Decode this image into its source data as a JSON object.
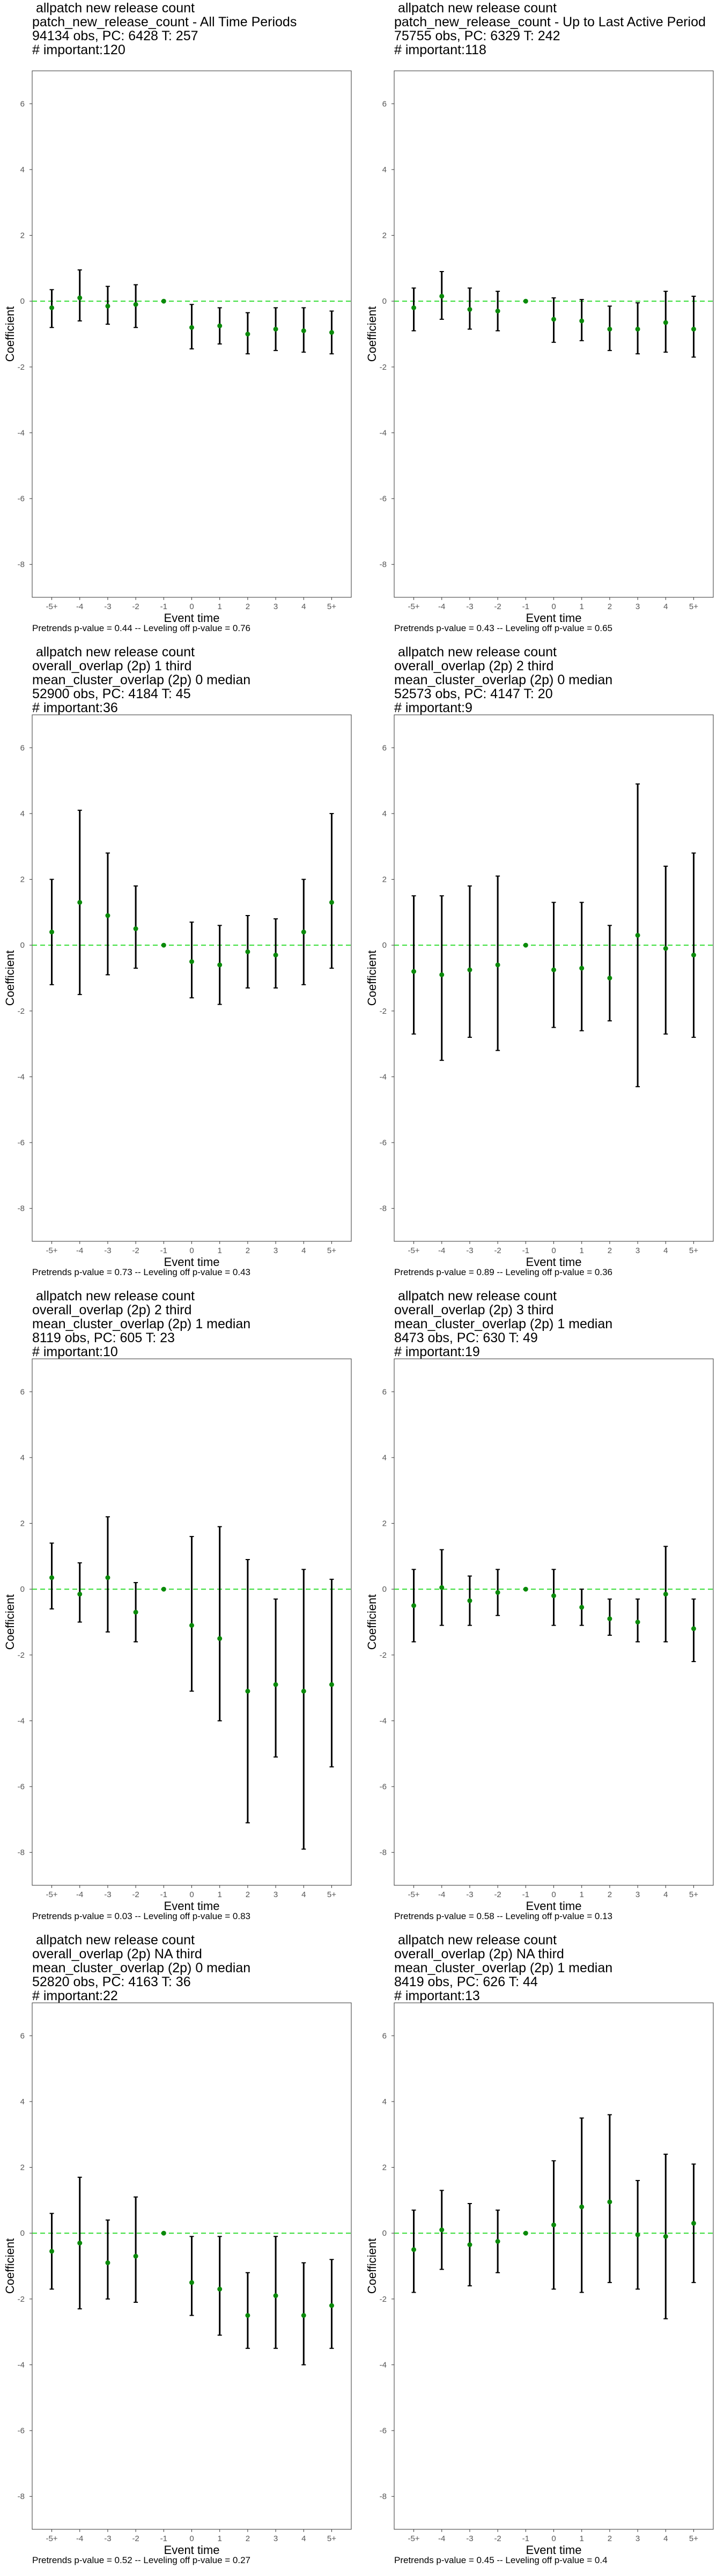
{
  "colors": {
    "point": "#0a8a0a",
    "zero_line": "#33dd33",
    "errorbar": "#000000",
    "frame": "#333333",
    "tick_text": "#555555"
  },
  "chart_data": [
    {
      "type": "scatter",
      "title_lines": [
        " allpatch new release count",
        "patch_new_release_count - All Time Periods",
        "94134 obs, PC: 6428 T: 257",
        "# important:120"
      ],
      "footnote": "Pretrends p-value = 0.44 -- Leveling off p-value = 0.76",
      "xlabel": "Event time",
      "ylabel": "Coefficient",
      "categories": [
        "-5+",
        "-4",
        "-3",
        "-2",
        "-1",
        "0",
        "1",
        "2",
        "3",
        "4",
        "5+"
      ],
      "estimates": [
        -0.2,
        0.1,
        -0.15,
        -0.1,
        0,
        -0.8,
        -0.75,
        -1.0,
        -0.85,
        -0.9,
        -0.95
      ],
      "ci_low": [
        -0.8,
        -0.6,
        -0.7,
        -0.8,
        0,
        -1.45,
        -1.3,
        -1.6,
        -1.5,
        -1.55,
        -1.6
      ],
      "ci_high": [
        0.35,
        0.95,
        0.45,
        0.5,
        0,
        -0.1,
        -0.2,
        -0.35,
        -0.2,
        -0.2,
        -0.3
      ],
      "ylim": [
        -9,
        7
      ],
      "yticks": [
        -8,
        -6,
        -4,
        -2,
        0,
        2,
        4,
        6
      ]
    },
    {
      "type": "scatter",
      "title_lines": [
        " allpatch new release count",
        "patch_new_release_count - Up to Last Active Period",
        "75755 obs, PC: 6329 T: 242",
        "# important:118"
      ],
      "footnote": "Pretrends p-value = 0.43 -- Leveling off p-value = 0.65",
      "xlabel": "Event time",
      "ylabel": "Coefficient",
      "categories": [
        "-5+",
        "-4",
        "-3",
        "-2",
        "-1",
        "0",
        "1",
        "2",
        "3",
        "4",
        "5+"
      ],
      "estimates": [
        -0.2,
        0.15,
        -0.25,
        -0.3,
        0,
        -0.55,
        -0.6,
        -0.85,
        -0.85,
        -0.65,
        -0.85
      ],
      "ci_low": [
        -0.9,
        -0.55,
        -0.85,
        -0.9,
        0,
        -1.25,
        -1.2,
        -1.5,
        -1.6,
        -1.55,
        -1.7
      ],
      "ci_high": [
        0.4,
        0.9,
        0.4,
        0.3,
        0,
        0.1,
        0.05,
        -0.15,
        -0.05,
        0.3,
        0.15
      ],
      "ylim": [
        -9,
        7
      ],
      "yticks": [
        -8,
        -6,
        -4,
        -2,
        0,
        2,
        4,
        6
      ]
    },
    {
      "type": "scatter",
      "title_lines": [
        " allpatch new release count",
        "overall_overlap (2p) 1 third",
        "mean_cluster_overlap (2p) 0 median",
        "52900 obs, PC: 4184 T: 45",
        "# important:36"
      ],
      "footnote": "Pretrends p-value = 0.73 -- Leveling off p-value = 0.43",
      "xlabel": "Event time",
      "ylabel": "Coefficient",
      "categories": [
        "-5+",
        "-4",
        "-3",
        "-2",
        "-1",
        "0",
        "1",
        "2",
        "3",
        "4",
        "5+"
      ],
      "estimates": [
        0.4,
        1.3,
        0.9,
        0.5,
        0,
        -0.5,
        -0.6,
        -0.2,
        -0.3,
        0.4,
        1.3
      ],
      "ci_low": [
        -1.2,
        -1.5,
        -0.9,
        -0.7,
        0,
        -1.6,
        -1.8,
        -1.3,
        -1.3,
        -1.2,
        -0.7
      ],
      "ci_high": [
        2.0,
        4.1,
        2.8,
        1.8,
        0,
        0.7,
        0.6,
        0.9,
        0.8,
        2.0,
        4.0
      ],
      "ylim": [
        -9,
        7
      ],
      "yticks": [
        -8,
        -6,
        -4,
        -2,
        0,
        2,
        4,
        6
      ]
    },
    {
      "type": "scatter",
      "title_lines": [
        " allpatch new release count",
        "overall_overlap (2p) 2 third",
        "mean_cluster_overlap (2p) 0 median",
        "52573 obs, PC: 4147 T: 20",
        "# important:9"
      ],
      "footnote": "Pretrends p-value = 0.89 -- Leveling off p-value = 0.36",
      "xlabel": "Event time",
      "ylabel": "Coefficient",
      "categories": [
        "-5+",
        "-4",
        "-3",
        "-2",
        "-1",
        "0",
        "1",
        "2",
        "3",
        "4",
        "5+"
      ],
      "estimates": [
        -0.8,
        -0.9,
        -0.75,
        -0.6,
        0,
        -0.75,
        -0.7,
        -1.0,
        0.3,
        -0.1,
        -0.3
      ],
      "ci_low": [
        -2.7,
        -3.5,
        -2.8,
        -3.2,
        0,
        -2.5,
        -2.6,
        -2.3,
        -4.3,
        -2.7,
        -2.8
      ],
      "ci_high": [
        1.5,
        1.5,
        1.8,
        2.1,
        0,
        1.3,
        1.3,
        0.6,
        4.9,
        2.4,
        2.8
      ],
      "ylim": [
        -9,
        7
      ],
      "yticks": [
        -8,
        -6,
        -4,
        -2,
        0,
        2,
        4,
        6
      ]
    },
    {
      "type": "scatter",
      "title_lines": [
        " allpatch new release count",
        "overall_overlap (2p) 2 third",
        "mean_cluster_overlap (2p) 1 median",
        "8119 obs, PC: 605 T: 23",
        "# important:10"
      ],
      "footnote": "Pretrends p-value = 0.03 -- Leveling off p-value = 0.83",
      "xlabel": "Event time",
      "ylabel": "Coefficient",
      "categories": [
        "-5+",
        "-4",
        "-3",
        "-2",
        "-1",
        "0",
        "1",
        "2",
        "3",
        "4",
        "5+"
      ],
      "estimates": [
        0.35,
        -0.15,
        0.35,
        -0.7,
        0,
        -1.1,
        -1.5,
        -3.1,
        -2.9,
        -3.1,
        -2.9
      ],
      "ci_low": [
        -0.6,
        -1.0,
        -1.3,
        -1.6,
        0,
        -3.1,
        -4.0,
        -7.1,
        -5.1,
        -7.9,
        -5.4
      ],
      "ci_high": [
        1.4,
        0.8,
        2.2,
        0.2,
        0,
        1.6,
        1.9,
        0.9,
        -0.3,
        0.6,
        0.3
      ],
      "ylim": [
        -9,
        7
      ],
      "yticks": [
        -8,
        -6,
        -4,
        -2,
        0,
        2,
        4,
        6
      ]
    },
    {
      "type": "scatter",
      "title_lines": [
        " allpatch new release count",
        "overall_overlap (2p) 3 third",
        "mean_cluster_overlap (2p) 1 median",
        "8473 obs, PC: 630 T: 49",
        "# important:19"
      ],
      "footnote": "Pretrends p-value = 0.58 -- Leveling off p-value = 0.13",
      "xlabel": "Event time",
      "ylabel": "Coefficient",
      "categories": [
        "-5+",
        "-4",
        "-3",
        "-2",
        "-1",
        "0",
        "1",
        "2",
        "3",
        "4",
        "5+"
      ],
      "estimates": [
        -0.5,
        0.05,
        -0.35,
        -0.1,
        0,
        -0.2,
        -0.55,
        -0.9,
        -1.0,
        -0.15,
        -1.2
      ],
      "ci_low": [
        -1.6,
        -1.1,
        -1.1,
        -0.8,
        0,
        -1.1,
        -1.1,
        -1.4,
        -1.6,
        -1.6,
        -2.2
      ],
      "ci_high": [
        0.6,
        1.2,
        0.4,
        0.6,
        0,
        0.6,
        0.0,
        -0.3,
        -0.3,
        1.3,
        -0.3
      ],
      "ylim": [
        -9,
        7
      ],
      "yticks": [
        -8,
        -6,
        -4,
        -2,
        0,
        2,
        4,
        6
      ]
    },
    {
      "type": "scatter",
      "title_lines": [
        " allpatch new release count",
        "overall_overlap (2p) NA third",
        "mean_cluster_overlap (2p) 0 median",
        "52820 obs, PC: 4163 T: 36",
        "# important:22"
      ],
      "footnote": "Pretrends p-value = 0.52 -- Leveling off p-value = 0.27",
      "xlabel": "Event time",
      "ylabel": "Coefficient",
      "categories": [
        "-5+",
        "-4",
        "-3",
        "-2",
        "-1",
        "0",
        "1",
        "2",
        "3",
        "4",
        "5+"
      ],
      "estimates": [
        -0.55,
        -0.3,
        -0.9,
        -0.7,
        0,
        -1.5,
        -1.7,
        -2.5,
        -1.9,
        -2.5,
        -2.2
      ],
      "ci_low": [
        -1.7,
        -2.3,
        -2.0,
        -2.1,
        0,
        -2.5,
        -3.1,
        -3.5,
        -3.5,
        -4.0,
        -3.5
      ],
      "ci_high": [
        0.6,
        1.7,
        0.4,
        1.1,
        0,
        -0.1,
        -0.1,
        -1.2,
        -0.1,
        -0.9,
        -0.8
      ],
      "ylim": [
        -9,
        7
      ],
      "yticks": [
        -8,
        -6,
        -4,
        -2,
        0,
        2,
        4,
        6
      ]
    },
    {
      "type": "scatter",
      "title_lines": [
        " allpatch new release count",
        "overall_overlap (2p) NA third",
        "mean_cluster_overlap (2p) 1 median",
        "8419 obs, PC: 626 T: 44",
        "# important:13"
      ],
      "footnote": "Pretrends p-value = 0.45 -- Leveling off p-value = 0.4",
      "xlabel": "Event time",
      "ylabel": "Coefficient",
      "categories": [
        "-5+",
        "-4",
        "-3",
        "-2",
        "-1",
        "0",
        "1",
        "2",
        "3",
        "4",
        "5+"
      ],
      "estimates": [
        -0.5,
        0.1,
        -0.35,
        -0.25,
        0,
        0.25,
        0.8,
        0.95,
        -0.05,
        -0.1,
        0.3
      ],
      "ci_low": [
        -1.8,
        -1.1,
        -1.6,
        -1.2,
        0,
        -1.7,
        -1.8,
        -1.5,
        -1.7,
        -2.6,
        -1.5
      ],
      "ci_high": [
        0.7,
        1.3,
        0.9,
        0.7,
        0,
        2.2,
        3.5,
        3.6,
        1.6,
        2.4,
        2.1
      ],
      "ylim": [
        -9,
        7
      ],
      "yticks": [
        -8,
        -6,
        -4,
        -2,
        0,
        2,
        4,
        6
      ]
    }
  ]
}
